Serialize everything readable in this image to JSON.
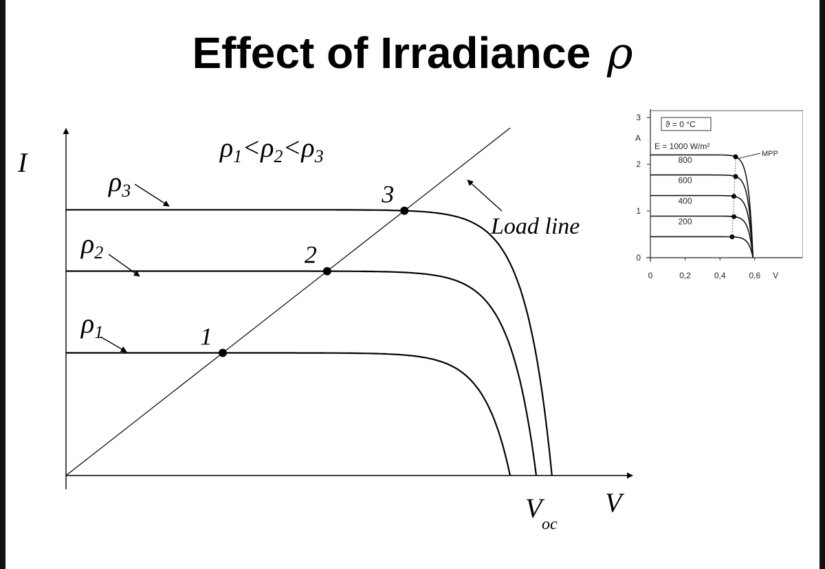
{
  "title": {
    "text": "Effect of Irradiance",
    "symbol": "ρ"
  },
  "chart_data": [
    {
      "type": "line",
      "xlabel": "V",
      "ylabel": "I",
      "ordering_label": {
        "p1": "ρ1",
        "lt1": "<",
        "p2": "ρ2",
        "lt2": "<",
        "p3": "ρ3"
      },
      "series": [
        {
          "name": "ρ1",
          "isc": 0.3,
          "voc": 0.85,
          "mpp": 1,
          "x": [
            0,
            0.2,
            0.4,
            0.6,
            0.75,
            0.8,
            0.83,
            0.85
          ],
          "y": [
            0.3,
            0.3,
            0.3,
            0.29,
            0.25,
            0.17,
            0.07,
            0
          ]
        },
        {
          "name": "ρ2",
          "isc": 0.5,
          "voc": 0.9,
          "mpp": 2,
          "x": [
            0,
            0.2,
            0.4,
            0.6,
            0.8,
            0.85,
            0.88,
            0.9
          ],
          "y": [
            0.5,
            0.5,
            0.5,
            0.49,
            0.43,
            0.29,
            0.12,
            0
          ]
        },
        {
          "name": "ρ3",
          "isc": 0.65,
          "voc": 0.93,
          "mpp": 3,
          "x": [
            0,
            0.2,
            0.4,
            0.6,
            0.8,
            0.88,
            0.91,
            0.93
          ],
          "y": [
            0.65,
            0.65,
            0.64,
            0.62,
            0.56,
            0.37,
            0.15,
            0
          ]
        }
      ],
      "points": [
        {
          "label": "1",
          "v": 0.3,
          "i": 0.3
        },
        {
          "label": "2",
          "v": 0.48,
          "i": 0.48
        },
        {
          "label": "3",
          "v": 0.62,
          "i": 0.62
        }
      ],
      "load_line": {
        "label": "Load line",
        "x": [
          0,
          0.85
        ],
        "y": [
          0,
          0.85
        ]
      },
      "annotations": {
        "voc": "V",
        "voc_sub": "oc"
      }
    },
    {
      "type": "line",
      "xlabel": "V",
      "ylabel": "A",
      "x_ticks": [
        "0",
        "0,2",
        "0,4",
        "0,6"
      ],
      "y_ticks": [
        "0",
        "1",
        "2",
        "3"
      ],
      "xlim": [
        0,
        0.75
      ],
      "ylim": [
        0,
        3
      ],
      "temperature_label": "ϑ = 0 °C",
      "irradiance_prefix": "E = ",
      "mpp_label": "MPP",
      "series": [
        {
          "name": "1000 W/m²",
          "isc": 2.2,
          "voc": 0.59,
          "mpp_v": 0.49
        },
        {
          "name": "800",
          "isc": 1.77,
          "voc": 0.59,
          "mpp_v": 0.49
        },
        {
          "name": "600",
          "isc": 1.33,
          "voc": 0.59,
          "mpp_v": 0.48
        },
        {
          "name": "400",
          "isc": 0.89,
          "voc": 0.59,
          "mpp_v": 0.48
        },
        {
          "name": "200",
          "isc": 0.45,
          "voc": 0.59,
          "mpp_v": 0.47
        }
      ]
    }
  ]
}
